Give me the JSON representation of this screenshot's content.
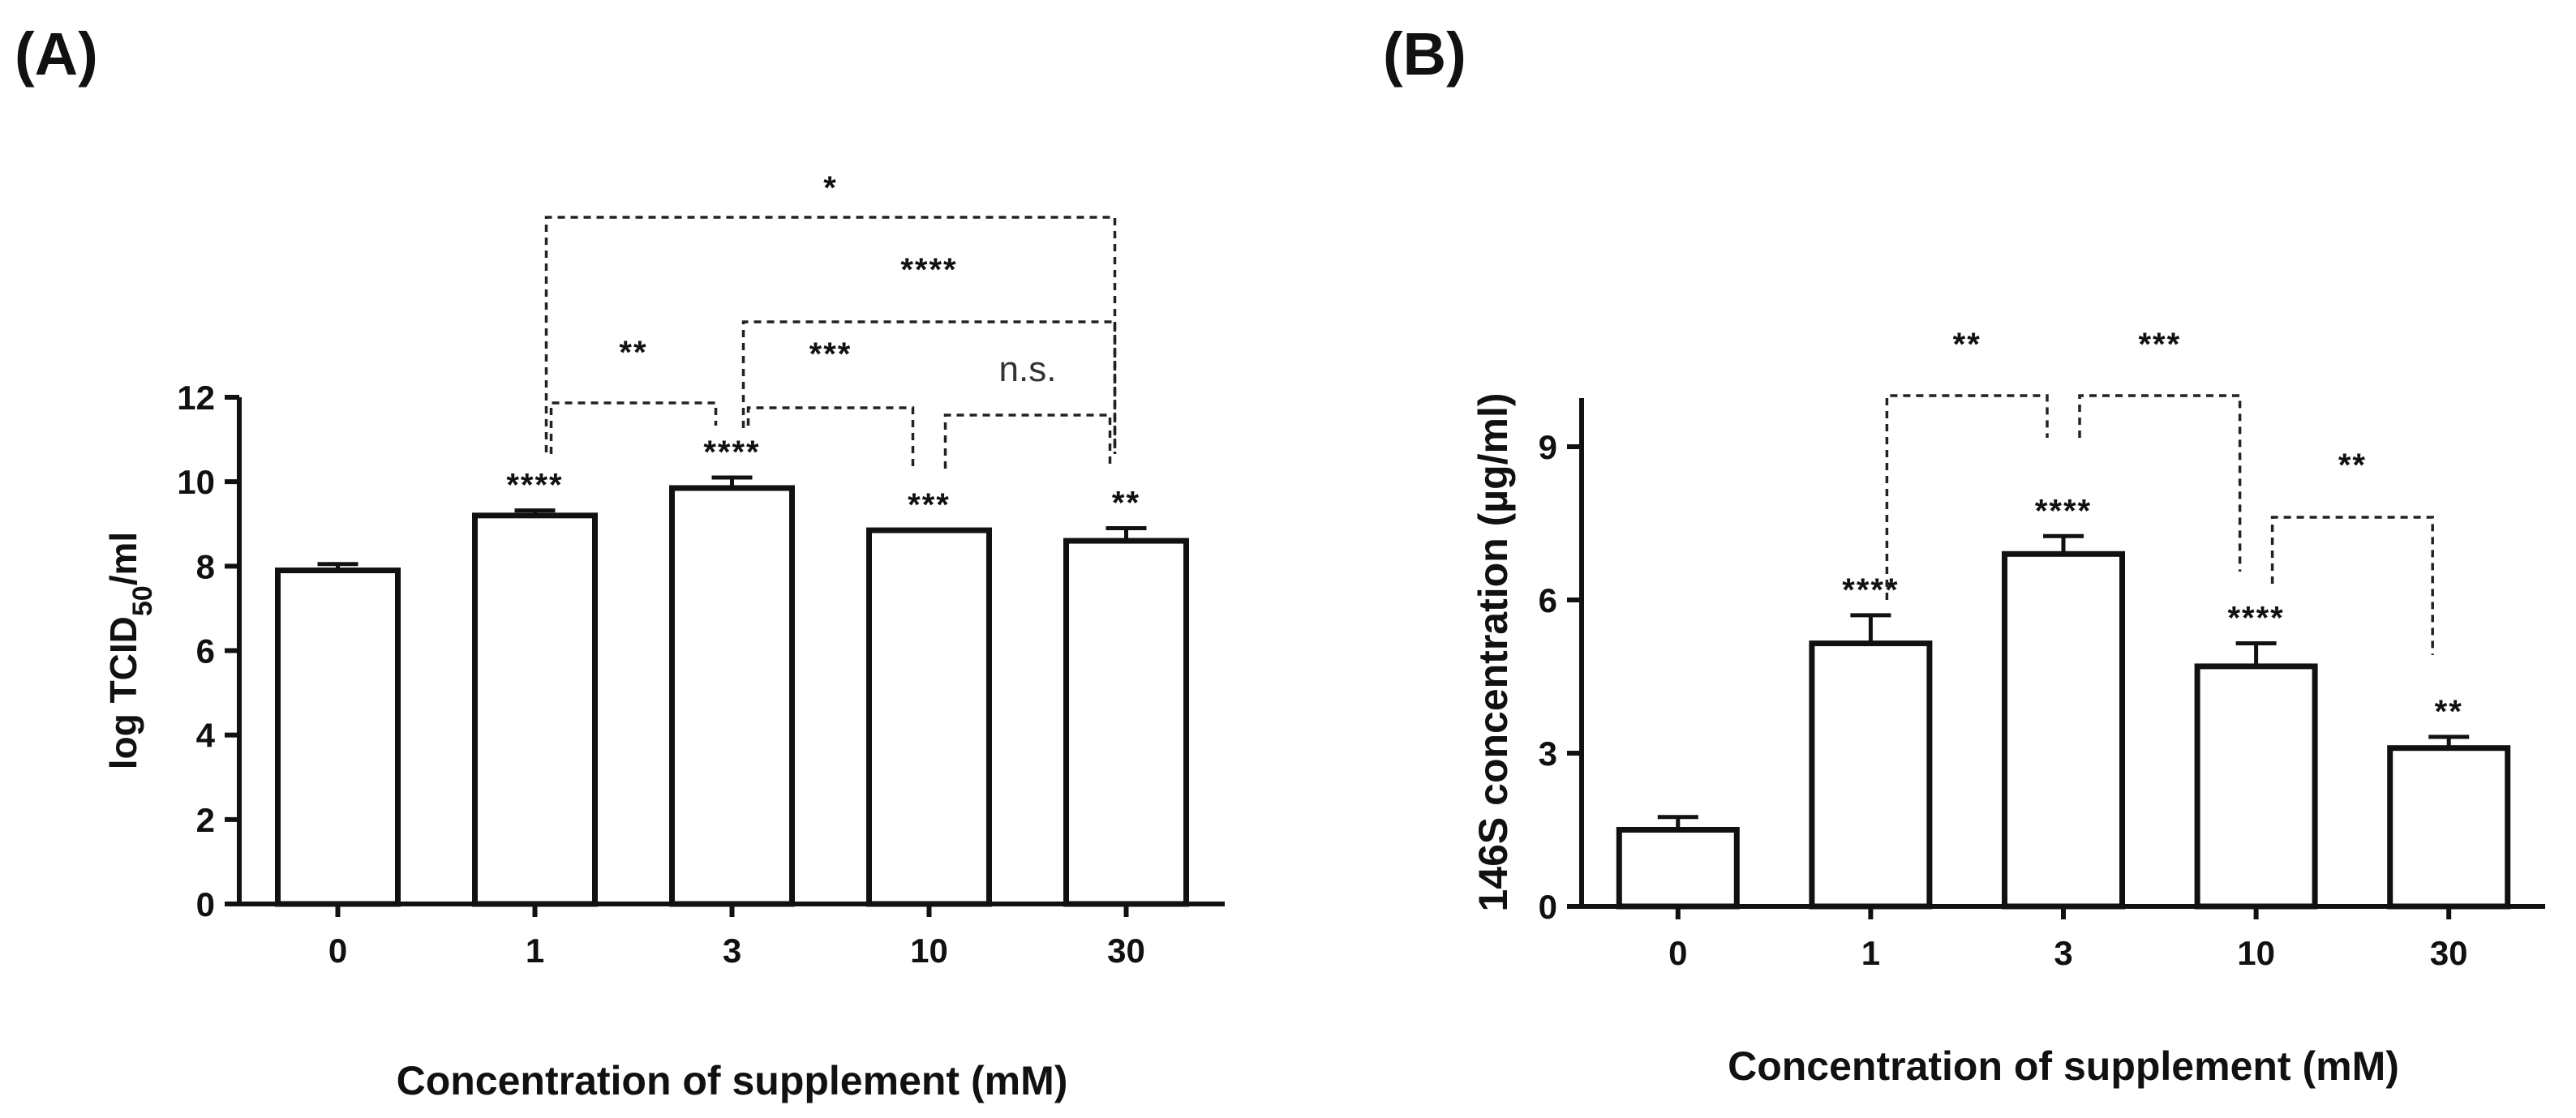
{
  "chart_data": [
    {
      "panel": "(A)",
      "type": "bar",
      "categories": [
        "0",
        "1",
        "3",
        "10",
        "30"
      ],
      "values": [
        7.9,
        9.2,
        9.85,
        8.85,
        8.6
      ],
      "errors": [
        0.15,
        0.12,
        0.25,
        0.0,
        0.3
      ],
      "bar_labels": [
        "",
        "****",
        "****",
        "***",
        "**"
      ],
      "xlabel": "Concentration of supplement (mM)",
      "ylabel_main": "log TCID",
      "ylabel_sub": "50",
      "ylabel_tail": "/ml",
      "ylim": [
        0,
        12
      ],
      "yticks": [
        0,
        2,
        4,
        6,
        8,
        10,
        12
      ],
      "comparisons": [
        {
          "from": "1",
          "to": "3",
          "label": "**"
        },
        {
          "from": "3",
          "to": "10",
          "label": "***"
        },
        {
          "from": "10",
          "to": "30",
          "label": "n.s."
        },
        {
          "from": "3",
          "to": "30",
          "label": "****"
        },
        {
          "from": "1",
          "to": "30",
          "label": "*"
        }
      ]
    },
    {
      "panel": "(B)",
      "type": "bar",
      "categories": [
        "0",
        "1",
        "3",
        "10",
        "30"
      ],
      "values": [
        1.5,
        5.15,
        6.9,
        4.7,
        3.1
      ],
      "errors": [
        0.25,
        0.55,
        0.35,
        0.45,
        0.22
      ],
      "bar_labels": [
        "",
        "****",
        "****",
        "****",
        "**"
      ],
      "xlabel": "Concentration of supplement (mM)",
      "ylabel": "146S concentration (µg/ml)",
      "ylim": [
        0,
        10
      ],
      "yticks": [
        0,
        3,
        6,
        9
      ],
      "comparisons": [
        {
          "from": "1",
          "to": "3",
          "label": "**"
        },
        {
          "from": "3",
          "to": "10",
          "label": "***"
        },
        {
          "from": "10",
          "to": "30",
          "label": "**"
        }
      ]
    }
  ]
}
